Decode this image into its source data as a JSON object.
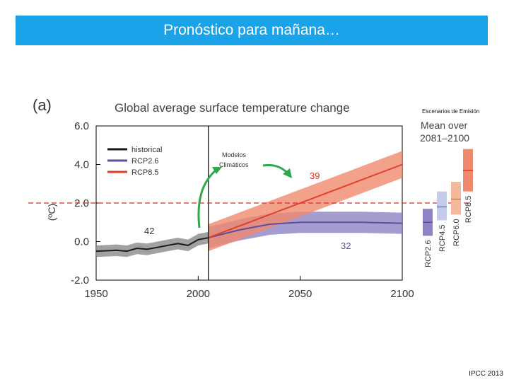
{
  "slide": {
    "title": "Pronóstico para mañana…",
    "credit": "IPCC 2013"
  },
  "annotations": {
    "scenarios_label": "Escenarios de Emisión",
    "models_line1": "Modelos",
    "models_line2": "Climáticos"
  },
  "chart_data": {
    "type": "line",
    "panel_label": "(a)",
    "title": "Global average surface temperature change",
    "ylabel": "(ºC)",
    "xlim": [
      1950,
      2100
    ],
    "ylim": [
      -2.0,
      6.0
    ],
    "yticks": [
      "6.0",
      "4.0",
      "2.0",
      "0.0",
      "-2.0"
    ],
    "ytick_values": [
      6,
      4,
      2,
      0,
      -2
    ],
    "xticks": [
      "1950",
      "2000",
      "2050",
      "2100"
    ],
    "xtick_values": [
      1950,
      2000,
      2050,
      2100
    ],
    "vline_year": 2005,
    "reference_hline": 2.0,
    "series": [
      {
        "name": "historical",
        "color": "#1a1a1a",
        "band": "#8a8a8a",
        "x": [
          1950,
          1960,
          1965,
          1970,
          1975,
          1980,
          1985,
          1990,
          1995,
          2000,
          2005
        ],
        "y": [
          -0.5,
          -0.45,
          -0.5,
          -0.35,
          -0.4,
          -0.3,
          -0.2,
          -0.1,
          -0.2,
          0.1,
          0.2
        ],
        "band_half": 0.3,
        "count_label": "42"
      },
      {
        "name": "RCP2.6",
        "color": "#5b4f9e",
        "band": "#8f83c4",
        "x": [
          2005,
          2020,
          2035,
          2050,
          2065,
          2080,
          2100
        ],
        "y": [
          0.2,
          0.6,
          0.9,
          1.0,
          1.0,
          1.0,
          0.95
        ],
        "band_half": 0.55,
        "count_label": "32"
      },
      {
        "name": "RCP8.5",
        "color": "#e0402b",
        "band": "#f08a6e",
        "x": [
          2005,
          2020,
          2035,
          2050,
          2065,
          2080,
          2100
        ],
        "y": [
          0.2,
          0.8,
          1.4,
          2.0,
          2.6,
          3.2,
          4.0
        ],
        "band_half": 0.7,
        "count_label": "39"
      }
    ],
    "legend": [
      "historical",
      "RCP2.6",
      "RCP8.5"
    ],
    "side_panel": {
      "title_line1": "Mean over",
      "title_line2": "2081–2100",
      "bars": [
        {
          "name": "RCP2.6",
          "low": 0.3,
          "high": 1.7,
          "mean": 1.0,
          "color": "#8f83c4",
          "line": "#5b4f9e"
        },
        {
          "name": "RCP4.5",
          "low": 1.1,
          "high": 2.6,
          "mean": 1.8,
          "color": "#c5cbe8",
          "line": "#6a7cc0"
        },
        {
          "name": "RCP6.0",
          "low": 1.4,
          "high": 3.1,
          "mean": 2.2,
          "color": "#f4b89a",
          "line": "#e07a4a"
        },
        {
          "name": "RCP8.5",
          "low": 2.6,
          "high": 4.8,
          "mean": 3.7,
          "color": "#f08a6e",
          "line": "#d83a22"
        }
      ]
    }
  }
}
